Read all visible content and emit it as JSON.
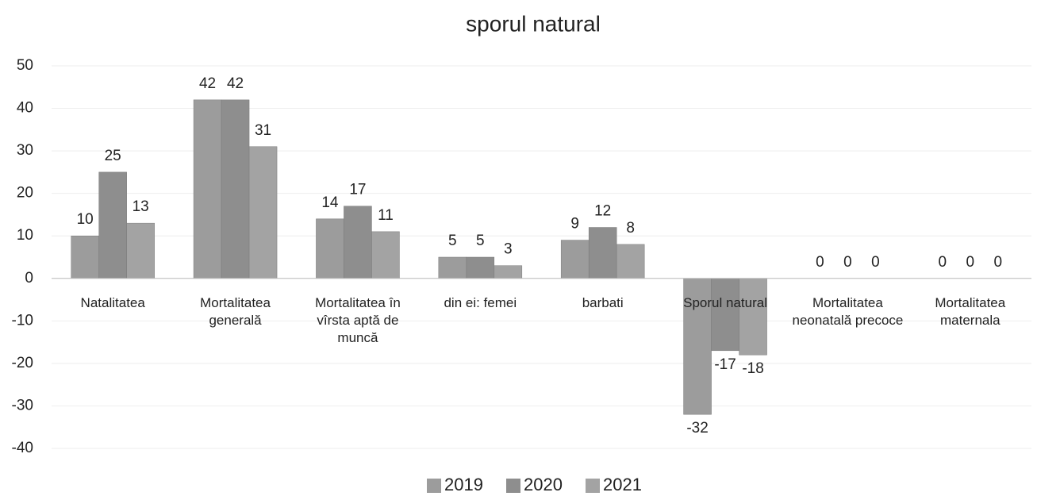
{
  "chart_data": {
    "type": "bar",
    "title": "sporul natural",
    "categories": [
      "Natalitatea",
      "Mortalitatea generală",
      "Mortalitatea în vîrsta aptă de muncă",
      "din ei: femei",
      "barbati",
      "Sporul natural",
      "Mortalitatea neonatală precoce",
      "Mortalitatea maternala"
    ],
    "series": [
      {
        "name": "2019",
        "color": "#9c9c9c",
        "values": [
          10,
          42,
          14,
          5,
          9,
          -32,
          0,
          0
        ]
      },
      {
        "name": "2020",
        "color": "#8e8e8e",
        "values": [
          25,
          42,
          17,
          5,
          12,
          -17,
          0,
          0
        ]
      },
      {
        "name": "2021",
        "color": "#a3a3a3",
        "values": [
          13,
          31,
          11,
          3,
          8,
          -18,
          0,
          0
        ]
      }
    ],
    "ylim": [
      -40,
      50
    ],
    "yticks": [
      -40,
      -30,
      -20,
      -10,
      0,
      10,
      20,
      30,
      40,
      50
    ],
    "grid": true,
    "legend": "bottom"
  }
}
